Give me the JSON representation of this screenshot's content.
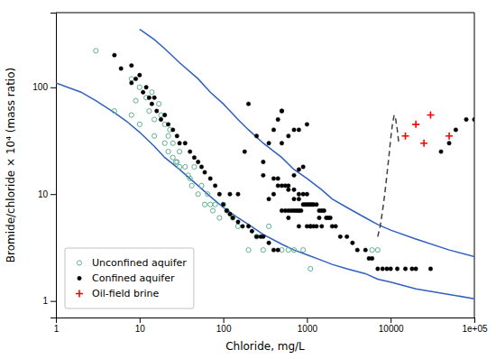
{
  "chart_data": {
    "type": "scatter",
    "xlabel": "Chloride, mg/L",
    "ylabel": "Bromide/chloride × 10⁴ (mass ratio)",
    "log": true,
    "grid": false,
    "legend": "lower left",
    "xlim": [
      1,
      100000
    ],
    "ylim": [
      0.7,
      500
    ],
    "xticks": [
      1,
      10,
      100,
      1000,
      10000,
      {
        "value": 100000,
        "label": "1e+05"
      }
    ],
    "yticks": [
      1,
      10,
      100
    ],
    "series": [
      {
        "type": "line",
        "color": "#3060c0",
        "line_style": "solid",
        "x": [
          1,
          2,
          3,
          5,
          7,
          10,
          15,
          20,
          30,
          50,
          70,
          100,
          150,
          200,
          300,
          500,
          700,
          1000,
          1500,
          2000,
          3000,
          5000,
          7000,
          10000,
          20000,
          50000,
          100000
        ],
        "values": [
          110,
          90,
          75,
          58,
          48,
          38,
          28,
          22,
          17,
          12,
          9.5,
          7.5,
          6,
          5.2,
          4.2,
          3.4,
          3.0,
          2.7,
          2.4,
          2.2,
          2.0,
          1.8,
          1.6,
          1.5,
          1.3,
          1.15,
          1.05
        ]
      },
      {
        "type": "line",
        "color": "#3060c0",
        "line_style": "solid",
        "x": [
          10,
          15,
          20,
          30,
          50,
          70,
          100,
          150,
          200,
          300,
          500,
          700,
          1000,
          1500,
          2000,
          3000,
          5000,
          7000,
          10000,
          20000,
          50000,
          100000
        ],
        "values": [
          350,
          280,
          230,
          170,
          120,
          90,
          70,
          50,
          40,
          30,
          22,
          17,
          14,
          11,
          9,
          7.5,
          6,
          5.2,
          4.6,
          3.8,
          3.0,
          2.6
        ]
      },
      {
        "type": "line",
        "color": "#404040",
        "line_style": "dashed",
        "x": [
          7000,
          7500,
          8000,
          8500,
          9000,
          9500,
          10000,
          10500,
          11000,
          11500,
          12000,
          12500
        ],
        "values": [
          4,
          5,
          7,
          10,
          15,
          22,
          33,
          45,
          55,
          50,
          40,
          30
        ]
      },
      {
        "name": "Unconfined aquifer",
        "type": "scatter",
        "color": "#60b090",
        "marker": "open-circle",
        "x": [
          3,
          5,
          8,
          8,
          9,
          10,
          10,
          12,
          13,
          14,
          15,
          15,
          17,
          18,
          20,
          20,
          22,
          22,
          23,
          25,
          25,
          27,
          28,
          30,
          30,
          35,
          38,
          40,
          42,
          45,
          50,
          55,
          60,
          65,
          70,
          75,
          80,
          90,
          100,
          110,
          130,
          150,
          200,
          250,
          300,
          350,
          500,
          600,
          700,
          900,
          1100,
          6000,
          7000
        ],
        "values": [
          220,
          60,
          120,
          55,
          75,
          100,
          45,
          80,
          60,
          90,
          50,
          35,
          70,
          55,
          45,
          30,
          35,
          25,
          40,
          30,
          22,
          20,
          20,
          18,
          25,
          18,
          15,
          14,
          12,
          18,
          10,
          12,
          8,
          10,
          8,
          7,
          8,
          6,
          8,
          7,
          6,
          5,
          3,
          4,
          3,
          5,
          3,
          3,
          3,
          3,
          2,
          3,
          3
        ]
      },
      {
        "name": "Confined aquifer",
        "type": "scatter",
        "color": "#000000",
        "marker": "circle",
        "x": [
          5,
          6,
          8,
          8,
          9,
          10,
          11,
          12,
          13,
          14,
          15,
          16,
          18,
          20,
          22,
          25,
          28,
          30,
          35,
          40,
          45,
          50,
          55,
          60,
          70,
          80,
          90,
          100,
          110,
          120,
          130,
          150,
          170,
          200,
          220,
          250,
          280,
          300,
          350,
          400,
          450,
          500,
          550,
          600,
          650,
          700,
          750,
          800,
          850,
          900,
          950,
          1000,
          1050,
          1100,
          1150,
          1200,
          1300,
          1400,
          1500,
          1600,
          1700,
          1800,
          1900,
          2000,
          2200,
          2500,
          3000,
          3500,
          4000,
          5000,
          5500,
          6000,
          7000,
          8000,
          9000,
          10000,
          12000,
          15000,
          18000,
          20000,
          30000,
          40000,
          50000,
          60000,
          80000,
          100000,
          500,
          600,
          700,
          800,
          900,
          300,
          400,
          450,
          500,
          550,
          600,
          700,
          800,
          900,
          1000,
          350,
          400,
          450,
          500,
          200,
          250,
          350,
          600,
          700,
          800,
          120,
          150,
          180,
          500,
          600,
          700,
          800,
          1000,
          1100,
          1200,
          1400,
          800,
          1000,
          1100,
          1300,
          1500,
          300,
          400,
          450
        ],
        "values": [
          200,
          150,
          160,
          110,
          120,
          130,
          90,
          100,
          80,
          70,
          80,
          60,
          50,
          55,
          45,
          40,
          35,
          30,
          30,
          25,
          22,
          20,
          18,
          16,
          14,
          12,
          10,
          8,
          7,
          6.5,
          6,
          5.5,
          5,
          5,
          4.5,
          4,
          4,
          4,
          3.5,
          3,
          3,
          7,
          7,
          7,
          7,
          7,
          7,
          7,
          7,
          8,
          8,
          8,
          8,
          8,
          8,
          8,
          8,
          7,
          7,
          7,
          6,
          6,
          6,
          5,
          5,
          4,
          4,
          3.5,
          3,
          3,
          2.5,
          2.5,
          2,
          2,
          2,
          2,
          2,
          2,
          2,
          2,
          2,
          25,
          30,
          40,
          50,
          50,
          60,
          12,
          15,
          17,
          18,
          20,
          10,
          12,
          12,
          12,
          11,
          11,
          10,
          10,
          10,
          9,
          40,
          50,
          60,
          70,
          35,
          30,
          6,
          9,
          9,
          10,
          10,
          25,
          30,
          35,
          40,
          40,
          45,
          5,
          5,
          6,
          5,
          5,
          5,
          5,
          5,
          15,
          14,
          14
        ]
      },
      {
        "name": "Oil-field brine",
        "type": "scatter",
        "color": "#ff0000",
        "marker": "plus",
        "x": [
          15000,
          20000,
          25000,
          30000,
          50000
        ],
        "values": [
          35,
          45,
          30,
          55,
          35
        ]
      }
    ]
  }
}
